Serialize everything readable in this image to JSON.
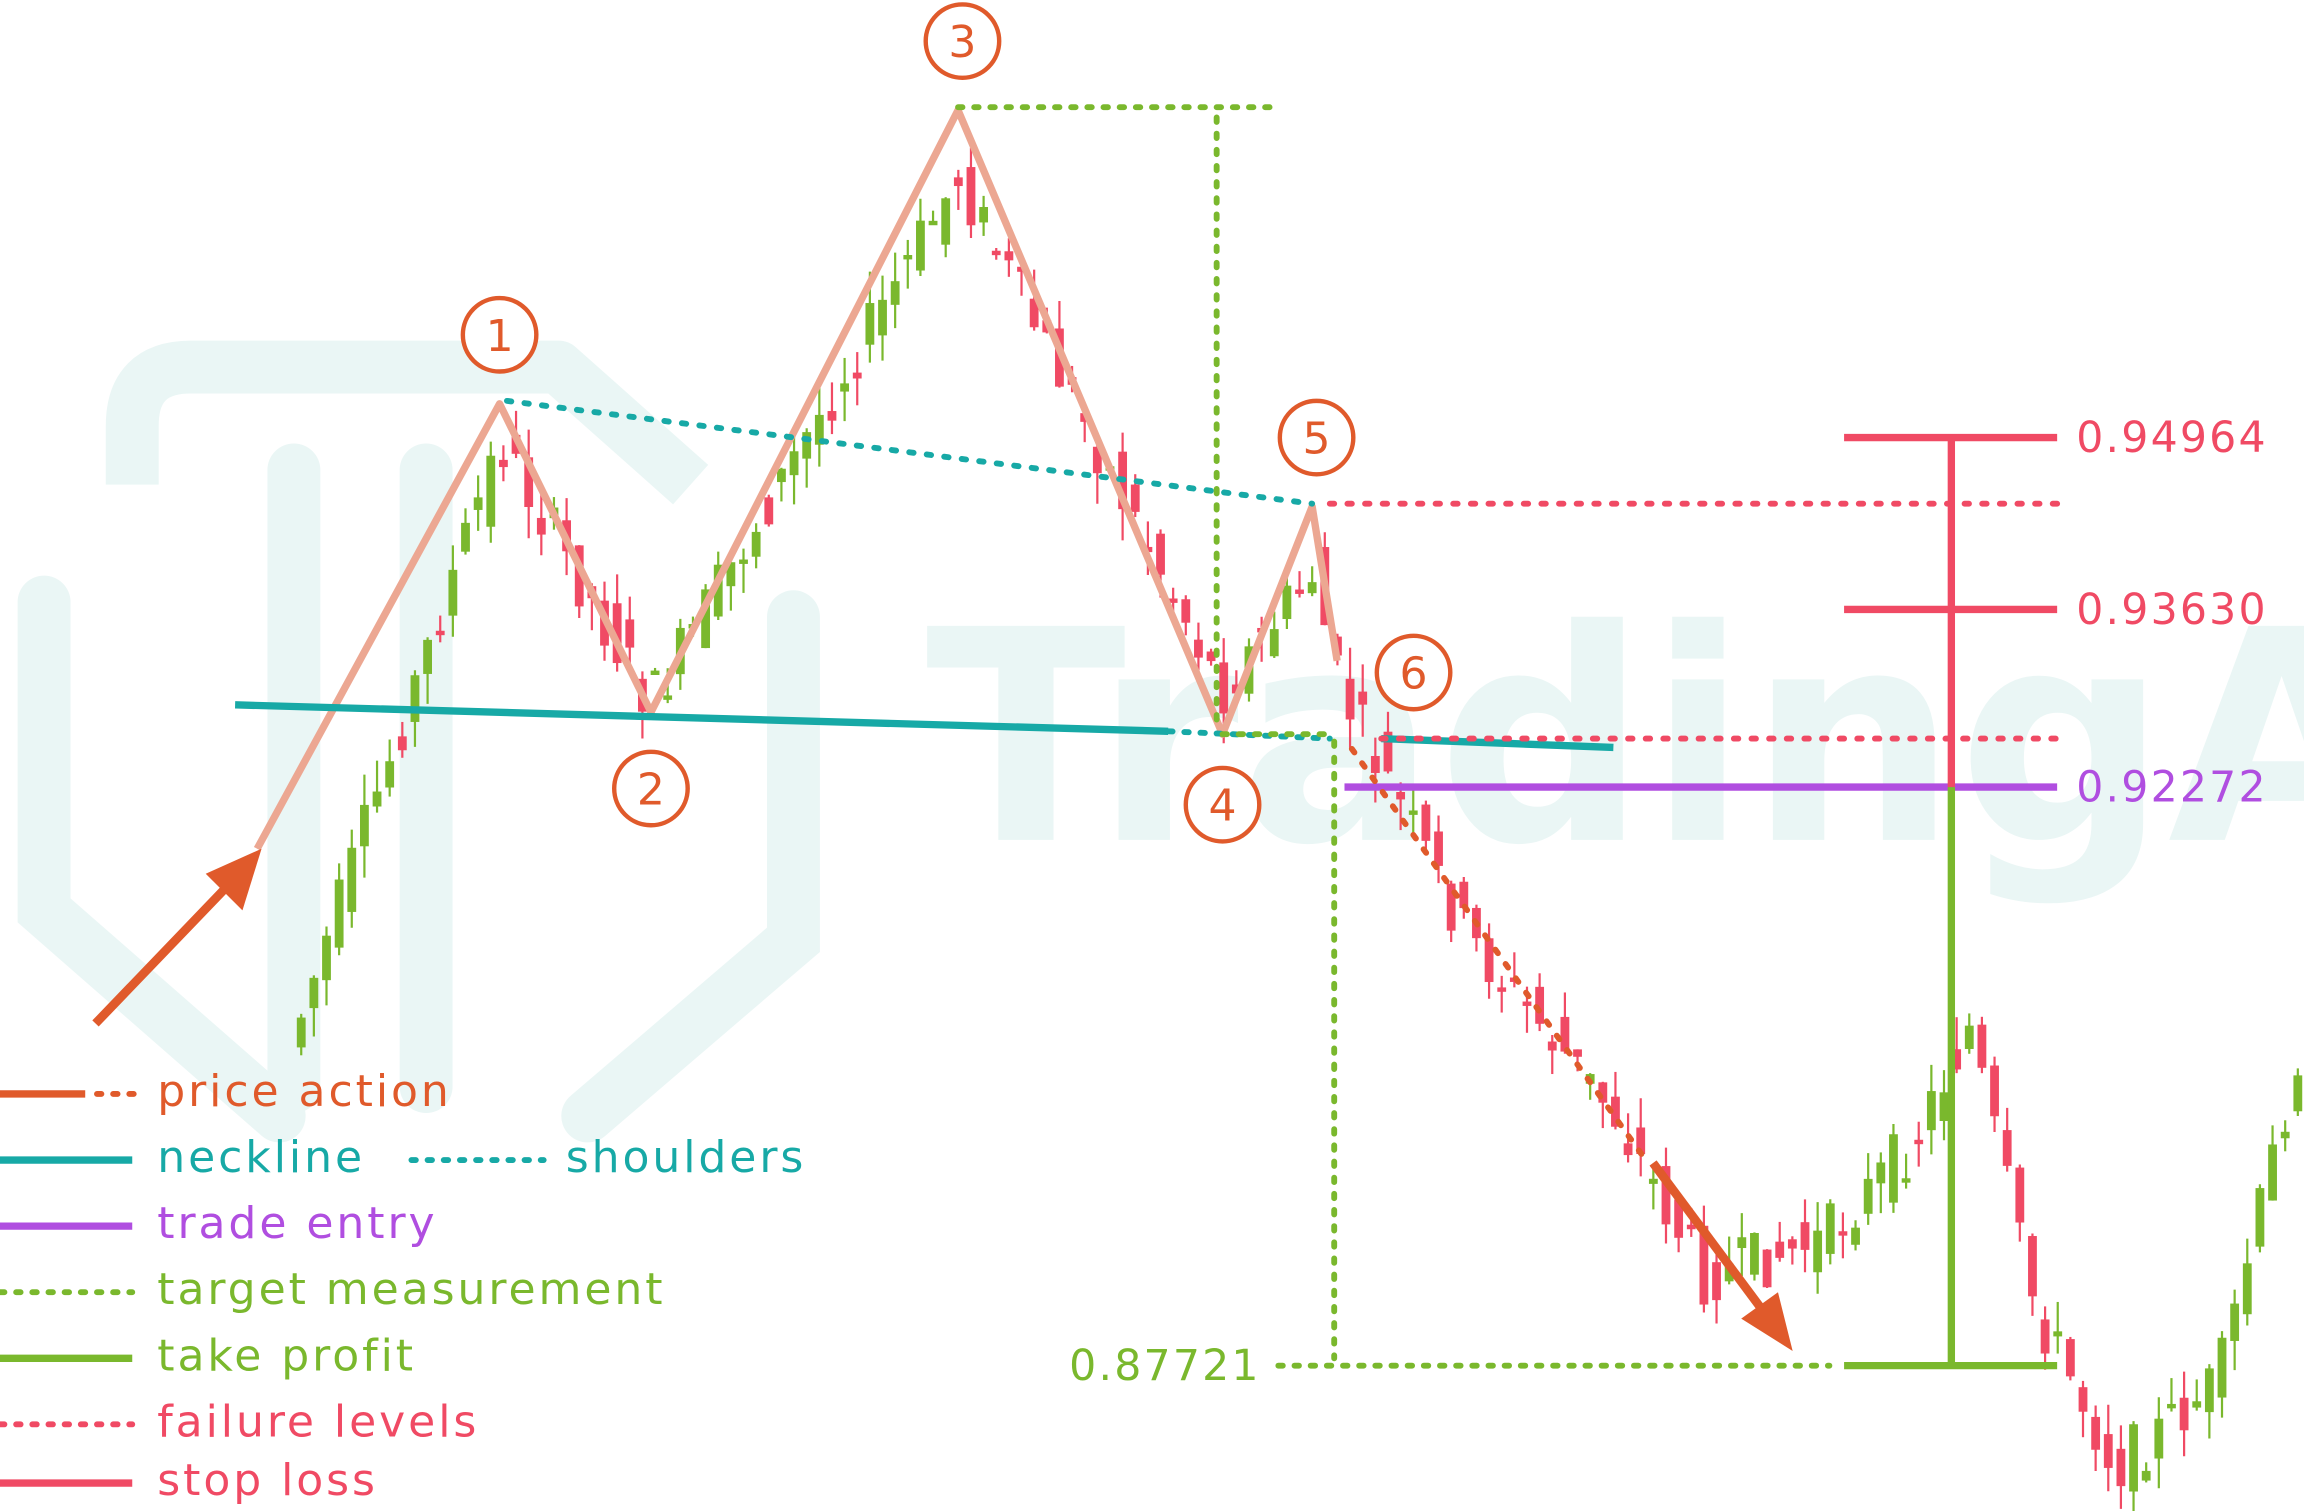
{
  "watermark": "TradingAxe",
  "points": [
    "1",
    "2",
    "3",
    "4",
    "5",
    "6"
  ],
  "price_levels": {
    "stop_loss_high": "0.94964",
    "stop_loss_low": "0.93630",
    "trade_entry": "0.92272",
    "take_profit": "0.87721"
  },
  "legend": [
    "price action",
    "neckline",
    "shoulders",
    "trade entry",
    "target measurement",
    "take profit",
    "failure levels",
    "stop loss"
  ]
}
